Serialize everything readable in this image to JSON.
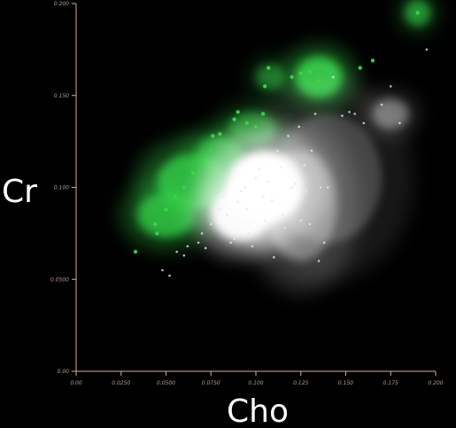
{
  "chart_data": {
    "type": "scatter",
    "title": "",
    "xlabel": "Cho",
    "ylabel": "Cr",
    "xlim": [
      0,
      0.2
    ],
    "ylim": [
      0,
      0.2
    ],
    "x_ticks": [
      "0.00",
      "0.0250",
      "0.0500",
      "0.0750",
      "0.100",
      "0.125",
      "0.150",
      "0.175",
      "0.200"
    ],
    "y_ticks": [
      "0.00",
      "0.0500",
      "0.100",
      "0.150",
      "0.200"
    ],
    "grid": false,
    "colors": {
      "background": "#000000",
      "axis": "#d9aa99",
      "green_series": "#3fd24a",
      "white_series": "#e6e6e6"
    },
    "series": [
      {
        "color": "#3fd24a",
        "points": [
          [
            0.033,
            0.065
          ],
          [
            0.045,
            0.075
          ],
          [
            0.044,
            0.08
          ],
          [
            0.05,
            0.088
          ],
          [
            0.055,
            0.095
          ],
          [
            0.06,
            0.1
          ],
          [
            0.065,
            0.108
          ],
          [
            0.07,
            0.113
          ],
          [
            0.075,
            0.12
          ],
          [
            0.076,
            0.128
          ],
          [
            0.08,
            0.129
          ],
          [
            0.088,
            0.137
          ],
          [
            0.09,
            0.141
          ],
          [
            0.095,
            0.135
          ],
          [
            0.1,
            0.133
          ],
          [
            0.104,
            0.14
          ],
          [
            0.105,
            0.155
          ],
          [
            0.107,
            0.165
          ],
          [
            0.12,
            0.16
          ],
          [
            0.125,
            0.162
          ],
          [
            0.13,
            0.163
          ],
          [
            0.135,
            0.158
          ],
          [
            0.158,
            0.165
          ],
          [
            0.165,
            0.169
          ],
          [
            0.19,
            0.195
          ]
        ]
      },
      {
        "color": "#e6e6e6",
        "points": [
          [
            0.048,
            0.055
          ],
          [
            0.052,
            0.052
          ],
          [
            0.056,
            0.065
          ],
          [
            0.06,
            0.063
          ],
          [
            0.062,
            0.068
          ],
          [
            0.068,
            0.07
          ],
          [
            0.07,
            0.075
          ],
          [
            0.072,
            0.067
          ],
          [
            0.075,
            0.08
          ],
          [
            0.078,
            0.082
          ],
          [
            0.08,
            0.088
          ],
          [
            0.082,
            0.095
          ],
          [
            0.084,
            0.085
          ],
          [
            0.086,
            0.07
          ],
          [
            0.088,
            0.072
          ],
          [
            0.09,
            0.092
          ],
          [
            0.092,
            0.098
          ],
          [
            0.094,
            0.1
          ],
          [
            0.095,
            0.088
          ],
          [
            0.096,
            0.075
          ],
          [
            0.098,
            0.068
          ],
          [
            0.1,
            0.105
          ],
          [
            0.102,
            0.11
          ],
          [
            0.104,
            0.095
          ],
          [
            0.105,
            0.082
          ],
          [
            0.107,
            0.103
          ],
          [
            0.109,
            0.093
          ],
          [
            0.11,
            0.062
          ],
          [
            0.112,
            0.12
          ],
          [
            0.114,
            0.111
          ],
          [
            0.115,
            0.085
          ],
          [
            0.116,
            0.078
          ],
          [
            0.118,
            0.128
          ],
          [
            0.12,
            0.1
          ],
          [
            0.122,
            0.102
          ],
          [
            0.124,
            0.133
          ],
          [
            0.125,
            0.082
          ],
          [
            0.127,
            0.112
          ],
          [
            0.128,
            0.098
          ],
          [
            0.13,
            0.08
          ],
          [
            0.131,
            0.12
          ],
          [
            0.133,
            0.14
          ],
          [
            0.135,
            0.06
          ],
          [
            0.136,
            0.1
          ],
          [
            0.138,
            0.07
          ],
          [
            0.14,
            0.1
          ],
          [
            0.143,
            0.16
          ],
          [
            0.148,
            0.139
          ],
          [
            0.152,
            0.141
          ],
          [
            0.155,
            0.14
          ],
          [
            0.16,
            0.135
          ],
          [
            0.17,
            0.145
          ],
          [
            0.175,
            0.155
          ],
          [
            0.195,
            0.175
          ],
          [
            0.18,
            0.135
          ]
        ]
      }
    ],
    "density_clouds": [
      {
        "color": "#35d048",
        "cx": 0.05,
        "cy": 0.085,
        "rx": 0.016,
        "ry": 0.012,
        "intensity": 0.75
      },
      {
        "color": "#35d048",
        "cx": 0.065,
        "cy": 0.103,
        "rx": 0.02,
        "ry": 0.015,
        "intensity": 0.8
      },
      {
        "color": "#35d048",
        "cx": 0.08,
        "cy": 0.118,
        "rx": 0.013,
        "ry": 0.01,
        "intensity": 0.7
      },
      {
        "color": "#35d048",
        "cx": 0.098,
        "cy": 0.132,
        "rx": 0.013,
        "ry": 0.009,
        "intensity": 0.55
      },
      {
        "color": "#35d048",
        "cx": 0.108,
        "cy": 0.16,
        "rx": 0.008,
        "ry": 0.007,
        "intensity": 0.45
      },
      {
        "color": "#35d048",
        "cx": 0.135,
        "cy": 0.16,
        "rx": 0.013,
        "ry": 0.011,
        "intensity": 0.9
      },
      {
        "color": "#35d048",
        "cx": 0.19,
        "cy": 0.195,
        "rx": 0.007,
        "ry": 0.007,
        "intensity": 0.6
      },
      {
        "color": "#ffffff",
        "cx": 0.105,
        "cy": 0.1,
        "rx": 0.022,
        "ry": 0.02,
        "intensity": 1.0
      },
      {
        "color": "#ffffff",
        "cx": 0.092,
        "cy": 0.086,
        "rx": 0.017,
        "ry": 0.015,
        "intensity": 0.95
      },
      {
        "color": "#ffffff",
        "cx": 0.125,
        "cy": 0.09,
        "rx": 0.02,
        "ry": 0.03,
        "intensity": 0.35
      },
      {
        "color": "#ffffff",
        "cx": 0.14,
        "cy": 0.105,
        "rx": 0.03,
        "ry": 0.035,
        "intensity": 0.2
      },
      {
        "color": "#ffffff",
        "cx": 0.175,
        "cy": 0.14,
        "rx": 0.01,
        "ry": 0.008,
        "intensity": 0.35
      }
    ]
  }
}
